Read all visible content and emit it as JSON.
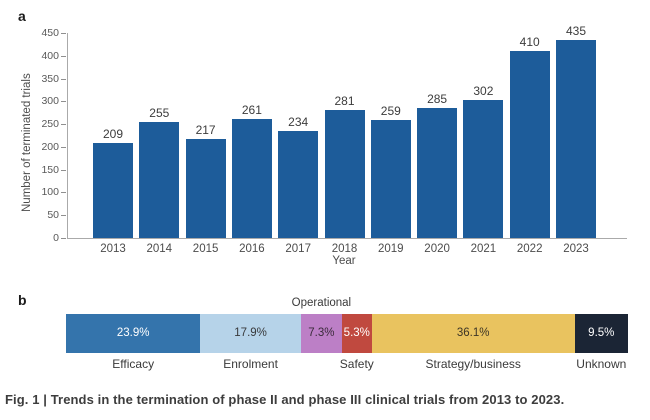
{
  "panel_a": {
    "label": "a"
  },
  "panel_b": {
    "label": "b"
  },
  "caption": "Fig. 1 | Trends in the termination of phase II and phase III clinical trials from 2013 to 2023.",
  "colors": {
    "bar_blue": "#1d5c9a",
    "axis_line": "#aaaaaa",
    "tick_mark": "#8f8f8f",
    "tick_label": "#595959",
    "value_label": "#3c3c3c",
    "category_label": "#4c4c4c"
  },
  "chart_data": [
    {
      "type": "bar",
      "categories": [
        "2013",
        "2014",
        "2015",
        "2016",
        "2017",
        "2018",
        "2019",
        "2020",
        "2021",
        "2022",
        "2023"
      ],
      "values": [
        209,
        255,
        217,
        261,
        234,
        281,
        259,
        285,
        302,
        410,
        435
      ],
      "title": "",
      "xlabel": "Year",
      "ylabel": "Number of terminated trials",
      "ylim": [
        0,
        450
      ],
      "ytick_step": 50,
      "bar_color": "#1d5c9a",
      "value_labels": true,
      "grid": false,
      "legend": "none"
    },
    {
      "type": "stacked-bar-horizontal",
      "title": "",
      "units": "percent",
      "segments": [
        {
          "label": "Efficacy",
          "value_pct": 23.9,
          "display": "23.9%",
          "color": "#3474ac",
          "text_color": "#ffffff",
          "label_position": "below"
        },
        {
          "label": "Enrolment",
          "value_pct": 17.9,
          "display": "17.9%",
          "color": "#b6d3e9",
          "text_color": "#38393b",
          "label_position": "below"
        },
        {
          "label": "Operational",
          "value_pct": 7.3,
          "display": "7.3%",
          "color": "#bc7fc6",
          "text_color": "#3a2b3a",
          "label_position": "above"
        },
        {
          "label": "Safety",
          "value_pct": 5.3,
          "display": "5.3%",
          "color": "#c0493f",
          "text_color": "#ffffff",
          "label_position": "below"
        },
        {
          "label": "Strategy/business",
          "value_pct": 36.1,
          "display": "36.1%",
          "color": "#e9c35f",
          "text_color": "#3c3526",
          "label_position": "below"
        },
        {
          "label": "Unknown",
          "value_pct": 9.5,
          "display": "9.5%",
          "color": "#1b2535",
          "text_color": "#ffffff",
          "label_position": "below"
        }
      ]
    }
  ]
}
